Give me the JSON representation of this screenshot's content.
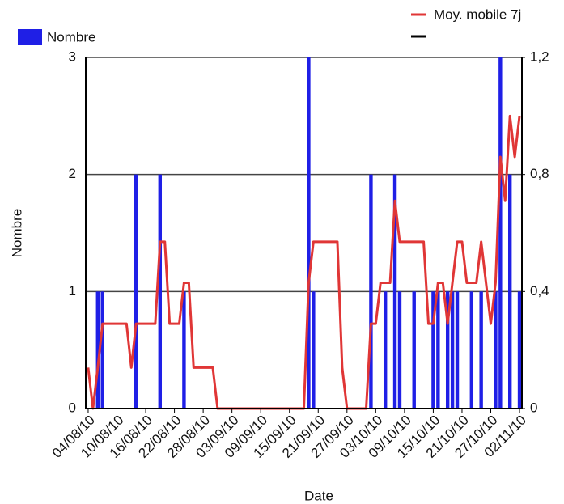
{
  "chart_data": {
    "type": "bar-line",
    "xlabel": "Date",
    "ylabel": "Nombre",
    "categories": [
      "04/08/10",
      null,
      null,
      null,
      null,
      null,
      "10/08/10",
      null,
      null,
      null,
      null,
      null,
      "16/08/10",
      null,
      null,
      null,
      null,
      null,
      "22/08/10",
      null,
      null,
      null,
      null,
      null,
      "28/08/10",
      null,
      null,
      null,
      null,
      null,
      "03/09/10",
      null,
      null,
      null,
      null,
      null,
      "09/09/10",
      null,
      null,
      null,
      null,
      null,
      "15/09/10",
      null,
      null,
      null,
      null,
      null,
      "21/09/10",
      null,
      null,
      null,
      null,
      null,
      "27/09/10",
      null,
      null,
      null,
      null,
      null,
      "03/10/10",
      null,
      null,
      null,
      null,
      null,
      "09/10/10",
      null,
      null,
      null,
      null,
      null,
      "15/10/10",
      null,
      null,
      null,
      null,
      null,
      "21/10/10",
      null,
      null,
      null,
      null,
      null,
      "27/10/10",
      null,
      null,
      null,
      null,
      null,
      "02/11/10"
    ],
    "series": [
      {
        "name": "Nombre",
        "type": "bar",
        "color": "#1f1fe6",
        "values": [
          0,
          0,
          1,
          1,
          0,
          0,
          0,
          0,
          0,
          0,
          2,
          0,
          0,
          0,
          0,
          2,
          0,
          0,
          0,
          0,
          1,
          0,
          0,
          0,
          0,
          0,
          0,
          0,
          0,
          0,
          0,
          0,
          0,
          0,
          0,
          0,
          0,
          0,
          0,
          0,
          0,
          0,
          0,
          0,
          0,
          0,
          3,
          1,
          0,
          0,
          0,
          0,
          0,
          0,
          0,
          0,
          0,
          0,
          0,
          2,
          0,
          0,
          1,
          0,
          2,
          1,
          0,
          0,
          1,
          0,
          0,
          0,
          1,
          1,
          0,
          1,
          1,
          1,
          0,
          0,
          1,
          0,
          1,
          0,
          0,
          1,
          3,
          0,
          2,
          0,
          1
        ]
      },
      {
        "name": "Moy. mobile 7j",
        "type": "line",
        "axis": "y2",
        "color": "#e03636",
        "values": [
          0.14,
          0,
          0.14,
          0.29,
          0.29,
          0.29,
          0.29,
          0.29,
          0.29,
          0.14,
          0.29,
          0.29,
          0.29,
          0.29,
          0.29,
          0.57,
          0.57,
          0.29,
          0.29,
          0.29,
          0.43,
          0.43,
          0.14,
          0.14,
          0.14,
          0.14,
          0.14,
          0,
          0,
          0,
          0,
          0,
          0,
          0,
          0,
          0,
          0,
          0,
          0,
          0,
          0,
          0,
          0,
          0,
          0,
          0,
          0.43,
          0.57,
          0.57,
          0.57,
          0.57,
          0.57,
          0.57,
          0.14,
          0,
          0,
          0,
          0,
          0,
          0.29,
          0.29,
          0.43,
          0.43,
          0.43,
          0.71,
          0.57,
          0.57,
          0.57,
          0.57,
          0.57,
          0.57,
          0.29,
          0.29,
          0.43,
          0.43,
          0.29,
          0.43,
          0.57,
          0.57,
          0.43,
          0.43,
          0.43,
          0.57,
          0.43,
          0.29,
          0.43,
          0.86,
          0.71,
          1.0,
          0.86,
          1.0
        ]
      }
    ],
    "ylim": [
      0,
      3
    ],
    "yticks": [
      0,
      1,
      2,
      3
    ],
    "y2lim": [
      0,
      1.2
    ],
    "y2ticks": [
      0,
      {
        "value": 0.4,
        "label": "0,4"
      },
      {
        "value": 0.8,
        "label": "0,8"
      },
      {
        "value": 1.2,
        "label": "1,2"
      }
    ],
    "grid": true
  }
}
